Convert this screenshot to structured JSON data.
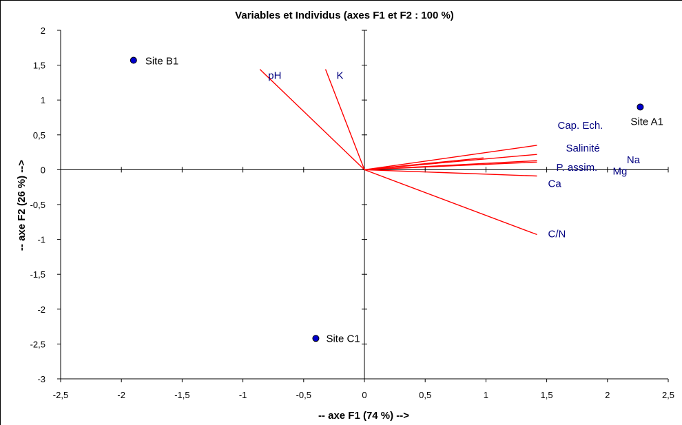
{
  "chart_data": {
    "type": "scatter",
    "title": "Variables et Individus (axes F1 et F2 : 100 %)",
    "xlabel": "-- axe F1 (74 %) -->",
    "ylabel": "-- axe F2 (26 %) -->",
    "xlim": [
      -2.5,
      2.5
    ],
    "ylim": [
      -3,
      2
    ],
    "x_ticks": [
      "-2,5",
      "-2",
      "-1,5",
      "-1",
      "-0,5",
      "0",
      "0,5",
      "1",
      "1,5",
      "2",
      "2,5"
    ],
    "y_ticks": [
      "2",
      "1,5",
      "1",
      "0,5",
      "0",
      "-0,5",
      "-1",
      "-1,5",
      "-2",
      "-2,5",
      "-3"
    ],
    "individuals": [
      {
        "name": "Site B1",
        "x": -1.9,
        "y": 1.57
      },
      {
        "name": "Site A1",
        "x": 2.27,
        "y": 0.9
      },
      {
        "name": "Site C1",
        "x": -0.4,
        "y": -2.42
      }
    ],
    "variables": [
      {
        "name": "pH",
        "x": -0.86,
        "y": 1.44
      },
      {
        "name": "K",
        "x": -0.32,
        "y": 1.44
      },
      {
        "name": "Cap. Ech.",
        "x": 1.42,
        "y": 0.35
      },
      {
        "name": "Salinité",
        "x": 1.42,
        "y": 0.22
      },
      {
        "name": "Na",
        "x": 0.98,
        "y": 0.17
      },
      {
        "name": "P. assim.",
        "x": 1.42,
        "y": 0.13
      },
      {
        "name": "Mg",
        "x": 1.42,
        "y": 0.11
      },
      {
        "name": "Ca",
        "x": 1.42,
        "y": -0.09
      },
      {
        "name": "C/N",
        "x": 1.42,
        "y": -0.93
      }
    ],
    "colors": {
      "vector": "#ff0000",
      "variable_label": "#000080",
      "point": "#0000cc",
      "point_stroke": "#000000"
    }
  }
}
